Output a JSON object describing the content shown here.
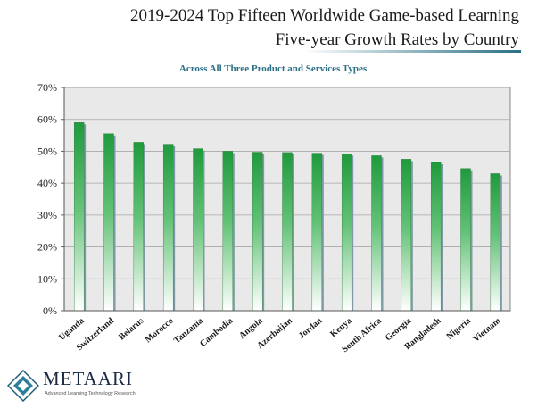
{
  "chart_data": {
    "type": "bar",
    "title_lines": [
      "2019-2024 Top Fifteen Worldwide Game-based Learning",
      "Five-year Growth Rates by Country"
    ],
    "subtitle": "Across All Three Product and Services Types",
    "categories": [
      "Uganda",
      "Switzerland",
      "Belarus",
      "Morocco",
      "Tanzania",
      "Cambodia",
      "Angola",
      "Azerbaijan",
      "Jordan",
      "Kenya",
      "South Africa",
      "Georgia",
      "Bangladesh",
      "Nigeria",
      "Vietnam"
    ],
    "values": [
      59.0,
      55.5,
      52.8,
      52.2,
      50.8,
      50.0,
      49.7,
      49.6,
      49.4,
      49.2,
      48.6,
      47.5,
      46.5,
      44.6,
      43.0
    ],
    "ylim": [
      0,
      70
    ],
    "yticks": [
      0,
      10,
      20,
      30,
      40,
      50,
      60,
      70
    ],
    "ytick_labels": [
      "0%",
      "10%",
      "20%",
      "30%",
      "40%",
      "50%",
      "60%",
      "70%"
    ],
    "grid": true,
    "colors": {
      "bar_top": "#1f9a3c",
      "bar_bottom": "#ffffff",
      "bar_side": "#7f9aa6",
      "plot_bg": "#e9e9e9",
      "subtitle": "#2a6f86"
    }
  },
  "logo": {
    "name": "METAARI",
    "tagline": "Advanced Learning Technology Research"
  }
}
